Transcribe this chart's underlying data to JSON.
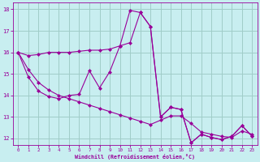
{
  "xlabel": "Windchill (Refroidissement éolien,°C)",
  "background_color": "#c8eef0",
  "grid_color": "#a0ccc8",
  "line_color": "#990099",
  "xlim": [
    -0.5,
    23.5
  ],
  "ylim": [
    11.7,
    18.3
  ],
  "yticks": [
    12,
    13,
    14,
    15,
    16,
    17,
    18
  ],
  "xticks": [
    0,
    1,
    2,
    3,
    4,
    5,
    6,
    7,
    8,
    9,
    10,
    11,
    12,
    13,
    14,
    15,
    16,
    17,
    18,
    19,
    20,
    21,
    22,
    23
  ],
  "s1_x": [
    0,
    1,
    2,
    3,
    4,
    5,
    6,
    7,
    8,
    9,
    10,
    11,
    12,
    13,
    14,
    15,
    16,
    17,
    18,
    19,
    20,
    21,
    22,
    23
  ],
  "s1_y": [
    16.0,
    15.85,
    15.9,
    16.0,
    16.0,
    16.0,
    16.05,
    16.1,
    16.1,
    16.15,
    16.3,
    16.45,
    17.85,
    17.2,
    13.0,
    13.45,
    13.35,
    11.8,
    12.2,
    12.05,
    11.95,
    12.1,
    12.6,
    12.1
  ],
  "s2_x": [
    0,
    1,
    2,
    3,
    4,
    5,
    6,
    7,
    8,
    9,
    10,
    11,
    12,
    13,
    14,
    15,
    16,
    17,
    18,
    19,
    20,
    21,
    22,
    23
  ],
  "s2_y": [
    16.0,
    14.85,
    14.2,
    13.95,
    13.85,
    14.0,
    14.05,
    15.15,
    14.35,
    15.1,
    16.3,
    17.95,
    17.85,
    17.2,
    13.0,
    13.45,
    13.35,
    11.8,
    12.2,
    12.05,
    11.95,
    12.1,
    12.6,
    12.1
  ],
  "s3_x": [
    0,
    1,
    2,
    3,
    4,
    5,
    6,
    7,
    8,
    9,
    10,
    11,
    12,
    13,
    14,
    15,
    16,
    17,
    18,
    19,
    20,
    21,
    22,
    23
  ],
  "s3_y": [
    16.0,
    15.2,
    14.6,
    14.25,
    14.0,
    13.85,
    13.7,
    13.55,
    13.4,
    13.25,
    13.1,
    12.95,
    12.8,
    12.65,
    12.85,
    13.05,
    13.05,
    12.7,
    12.3,
    12.2,
    12.1,
    12.05,
    12.35,
    12.2
  ]
}
